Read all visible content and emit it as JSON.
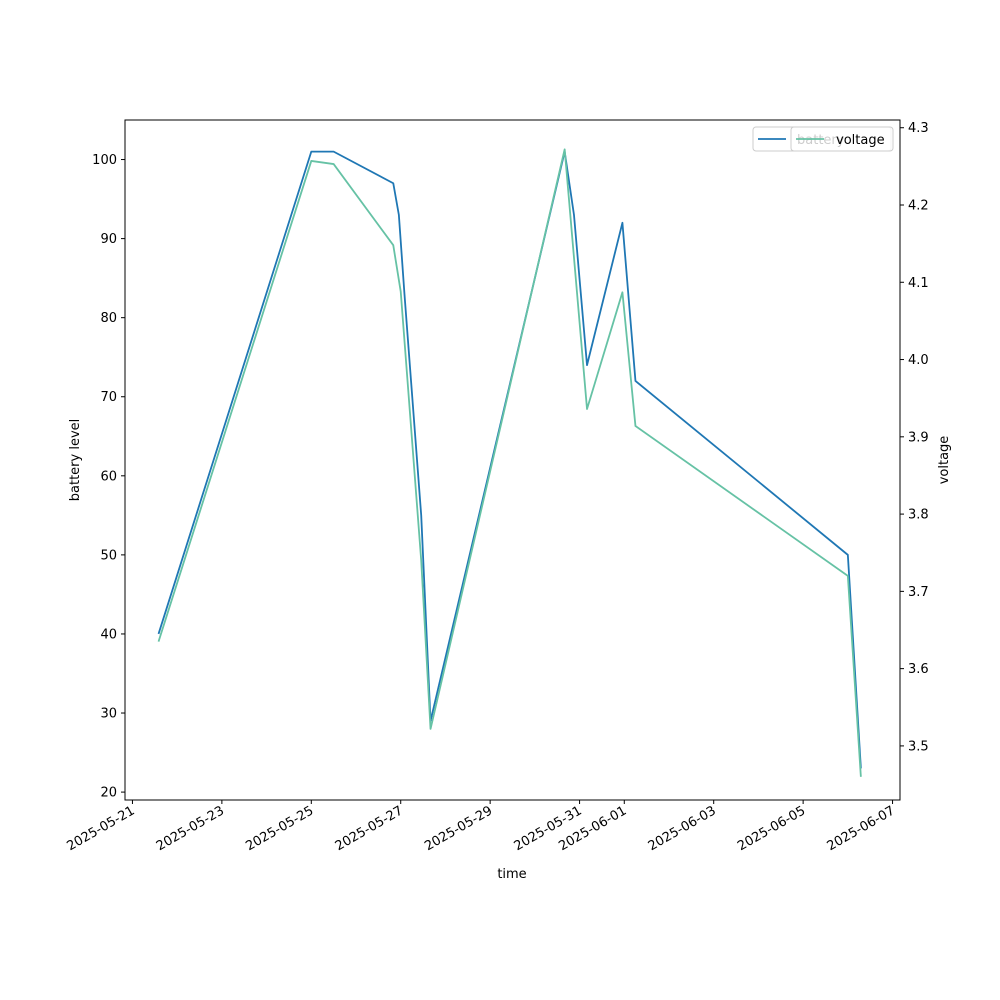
{
  "chart_data": {
    "type": "line",
    "title": "",
    "xlabel": "time",
    "ylabel_left": "battery level",
    "ylabel_right": "voltage",
    "x_ticks": [
      "2025-05-21",
      "2025-05-23",
      "2025-05-25",
      "2025-05-27",
      "2025-05-29",
      "2025-05-31",
      "2025-06-01",
      "2025-06-03",
      "2025-06-05",
      "2025-06-07"
    ],
    "x_range": [
      "2025-05-20T20:00",
      "2025-06-07T04:00"
    ],
    "y_left_ticks": [
      20,
      30,
      40,
      50,
      60,
      70,
      80,
      90,
      100
    ],
    "y_left_range": [
      19,
      105
    ],
    "y_right_ticks": [
      3.5,
      3.6,
      3.7,
      3.8,
      3.9,
      4.0,
      4.1,
      4.2,
      4.3
    ],
    "y_right_range": [
      3.43,
      4.31
    ],
    "grid": false,
    "legend_placement": "top-right",
    "colors": {
      "battery": "#1f77b4",
      "voltage": "#66c2a5"
    },
    "series": [
      {
        "name": "battery",
        "axis": "left",
        "x": [
          "2025-05-21T14:00",
          "2025-05-25T00:00",
          "2025-05-25T12:00",
          "2025-05-26T20:00",
          "2025-05-26T23:00",
          "2025-05-27T02:00",
          "2025-05-27T11:00",
          "2025-05-27T16:00",
          "2025-05-30T16:00",
          "2025-05-30T21:00",
          "2025-05-31T04:00",
          "2025-05-31T23:00",
          "2025-06-01T06:00",
          "2025-06-06T00:00",
          "2025-06-06T07:00"
        ],
        "values": [
          40,
          101,
          101,
          97,
          93,
          83,
          55,
          29,
          101,
          93,
          74,
          92,
          72,
          50,
          23
        ]
      },
      {
        "name": "voltage",
        "axis": "right",
        "x": [
          "2025-05-21T14:00",
          "2025-05-25T00:00",
          "2025-05-25T12:00",
          "2025-05-26T20:00",
          "2025-05-27T00:00",
          "2025-05-27T11:00",
          "2025-05-27T16:00",
          "2025-05-30T16:00",
          "2025-05-31T04:00",
          "2025-05-31T23:00",
          "2025-06-01T06:00",
          "2025-06-06T00:00",
          "2025-06-06T07:00"
        ],
        "values": [
          3.635,
          4.257,
          4.253,
          4.148,
          4.088,
          3.74,
          3.522,
          4.272,
          3.936,
          4.087,
          3.914,
          3.72,
          3.46
        ]
      }
    ]
  }
}
